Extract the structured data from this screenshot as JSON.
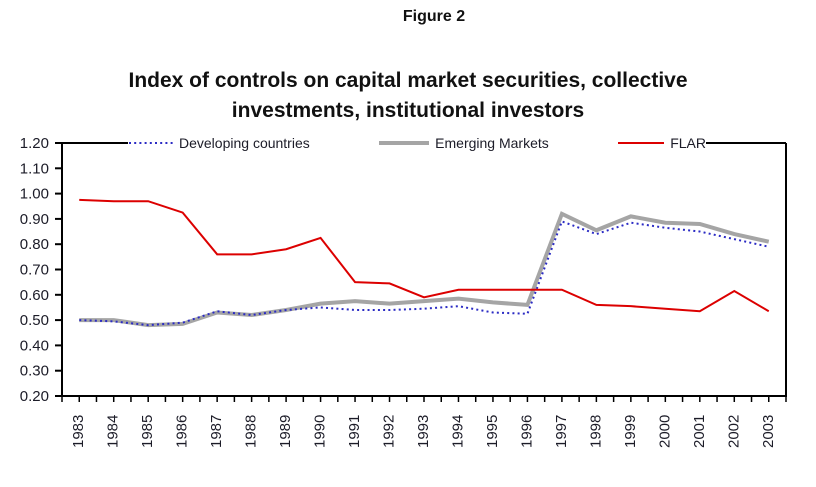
{
  "figure_label": "Figure 2",
  "chart_data": {
    "type": "line",
    "title": "Index of controls on capital market securities, collective investments, institutional investors",
    "title_lines": [
      "Index of controls on capital market securities, collective",
      "investments, institutional investors"
    ],
    "categories": [
      "1983",
      "1984",
      "1985",
      "1986",
      "1987",
      "1988",
      "1989",
      "1990",
      "1991",
      "1992",
      "1993",
      "1994",
      "1995",
      "1996",
      "1997",
      "1998",
      "1999",
      "2000",
      "2001",
      "2002",
      "2003"
    ],
    "series": [
      {
        "name": "Developing countries",
        "color": "#2B2BC4",
        "line_style": "dotted",
        "line_width": 2,
        "values": [
          0.5,
          0.495,
          0.48,
          0.49,
          0.535,
          0.52,
          0.54,
          0.55,
          0.54,
          0.54,
          0.545,
          0.555,
          0.53,
          0.525,
          0.89,
          0.84,
          0.885,
          0.865,
          0.85,
          0.82,
          0.79
        ]
      },
      {
        "name": "Emerging Markets",
        "color": "#A5A5A5",
        "line_style": "solid",
        "line_width": 4,
        "values": [
          0.5,
          0.5,
          0.48,
          0.485,
          0.53,
          0.52,
          0.54,
          0.565,
          0.575,
          0.565,
          0.575,
          0.585,
          0.57,
          0.56,
          0.92,
          0.855,
          0.91,
          0.885,
          0.88,
          0.84,
          0.81
        ]
      },
      {
        "name": "FLAR",
        "color": "#DC0000",
        "line_style": "solid",
        "line_width": 2,
        "values": [
          0.975,
          0.97,
          0.97,
          0.925,
          0.76,
          0.76,
          0.78,
          0.825,
          0.65,
          0.645,
          0.59,
          0.62,
          0.62,
          0.62,
          0.62,
          0.56,
          0.555,
          0.545,
          0.535,
          0.615,
          0.535
        ]
      }
    ],
    "y_axis": {
      "min": 0.2,
      "max": 1.2,
      "step": 0.1,
      "tick_labels": [
        "1.20",
        "1.10",
        "1.00",
        "0.90",
        "0.80",
        "0.70",
        "0.60",
        "0.50",
        "0.40",
        "0.30",
        "0.20"
      ]
    },
    "x_axis": {
      "label_rotation": -90
    },
    "legend_position": "top",
    "grid": false,
    "axis_color": "#000000",
    "tick_label_color": "#1c1c28"
  }
}
